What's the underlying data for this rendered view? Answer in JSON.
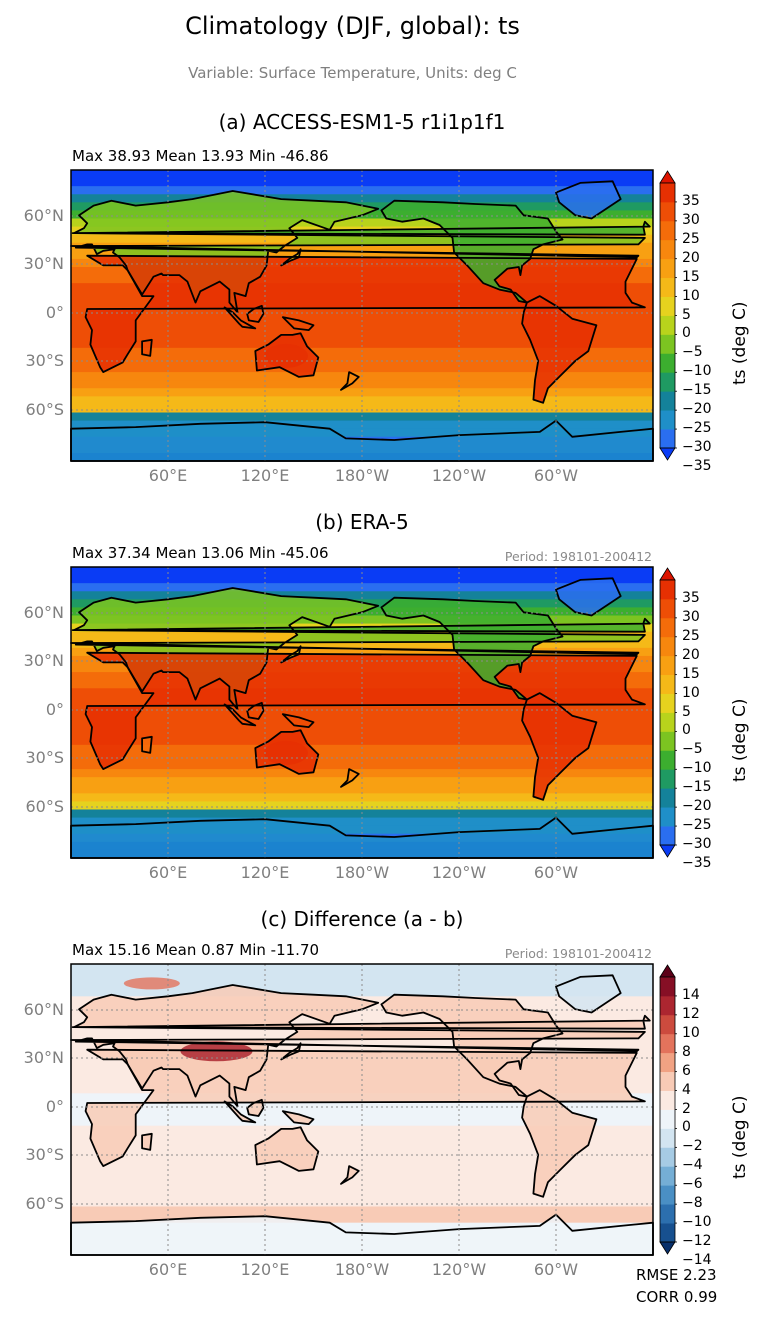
{
  "figure": {
    "title": "Climatology (DJF, global): ts",
    "subtitle": "Variable: Surface Temperature, Units: deg C",
    "lat_labels": [
      "60°N",
      "30°N",
      "0°",
      "30°S",
      "60°S"
    ],
    "lon_labels": [
      "60°E",
      "120°E",
      "180°W",
      "120°W",
      "60°W"
    ],
    "rmse": "RMSE 2.23",
    "corr": "CORR 0.99"
  },
  "panels": [
    {
      "title": "(a) ACCESS-ESM1-5 r1i1p1f1",
      "stats": "Max 38.93 Mean 13.93 Min -46.86",
      "period": "",
      "colorbar_label": "ts (deg C)",
      "colorbar_ticks": [
        "35",
        "30",
        "25",
        "20",
        "15",
        "10",
        "5",
        "0",
        "−5",
        "−10",
        "−15",
        "−20",
        "−25",
        "−30",
        "−35"
      ]
    },
    {
      "title": "(b) ERA-5",
      "stats": "Max 37.34 Mean 13.06 Min -45.06",
      "period": "Period: 198101-200412",
      "colorbar_label": "ts (deg C)",
      "colorbar_ticks": [
        "35",
        "30",
        "25",
        "20",
        "15",
        "10",
        "5",
        "0",
        "−5",
        "−10",
        "−15",
        "−20",
        "−25",
        "−30",
        "−35"
      ]
    },
    {
      "title": "(c) Difference (a - b)",
      "stats": "Max 15.16 Mean 0.87 Min -11.70",
      "period": "Period: 198101-200412",
      "colorbar_label": "ts (deg C)",
      "colorbar_ticks": [
        "14",
        "12",
        "10",
        "8",
        "6",
        "4",
        "2",
        "0",
        "−2",
        "−4",
        "−6",
        "−8",
        "−10",
        "−12",
        "−14"
      ]
    }
  ],
  "colors": {
    "temp_scale": [
      "#0a3cf5",
      "#2a6ef0",
      "#1f8fc8",
      "#14829a",
      "#1f9a62",
      "#3cae2f",
      "#7cc421",
      "#b8d31c",
      "#e6d21e",
      "#f5b918",
      "#f8a012",
      "#f7870e",
      "#f46c0a",
      "#ee4e06",
      "#e63002",
      "#dd1400"
    ],
    "diff_scale": [
      "#08306b",
      "#17508f",
      "#2c6fae",
      "#4a8fc4",
      "#75aed5",
      "#a6cbe4",
      "#d3e5f1",
      "#eef4f9",
      "#fbeae2",
      "#f8cbb6",
      "#f1a283",
      "#e3735c",
      "#cc4b3e",
      "#ac2630",
      "#860f25",
      "#5c0018"
    ]
  },
  "chart_data": [
    {
      "type": "heatmap",
      "title": "(a) ACCESS-ESM1-5 r1i1p1f1",
      "variable": "ts",
      "units": "deg C",
      "stats": {
        "max": 38.93,
        "mean": 13.93,
        "min": -46.86
      },
      "x_ticks": [
        "60°E",
        "120°E",
        "180°W",
        "120°W",
        "60°W"
      ],
      "y_ticks": [
        "60°N",
        "30°N",
        "0°",
        "30°S",
        "60°S"
      ],
      "colorbar": {
        "min": -40,
        "max": 40,
        "step": 5,
        "extend": "both"
      }
    },
    {
      "type": "heatmap",
      "title": "(b) ERA-5",
      "variable": "ts",
      "units": "deg C",
      "period": "198101-200412",
      "stats": {
        "max": 37.34,
        "mean": 13.06,
        "min": -45.06
      },
      "x_ticks": [
        "60°E",
        "120°E",
        "180°W",
        "120°W",
        "60°W"
      ],
      "y_ticks": [
        "60°N",
        "30°N",
        "0°",
        "30°S",
        "60°S"
      ],
      "colorbar": {
        "min": -40,
        "max": 40,
        "step": 5,
        "extend": "both"
      }
    },
    {
      "type": "heatmap",
      "title": "(c) Difference (a - b)",
      "variable": "ts",
      "units": "deg C",
      "period": "198101-200412",
      "stats": {
        "max": 15.16,
        "mean": 0.87,
        "min": -11.7,
        "rmse": 2.23,
        "corr": 0.99
      },
      "x_ticks": [
        "60°E",
        "120°E",
        "180°W",
        "120°W",
        "60°W"
      ],
      "y_ticks": [
        "60°N",
        "30°N",
        "0°",
        "30°S",
        "60°S"
      ],
      "colorbar": {
        "min": -16,
        "max": 16,
        "step": 2,
        "extend": "both"
      }
    }
  ]
}
